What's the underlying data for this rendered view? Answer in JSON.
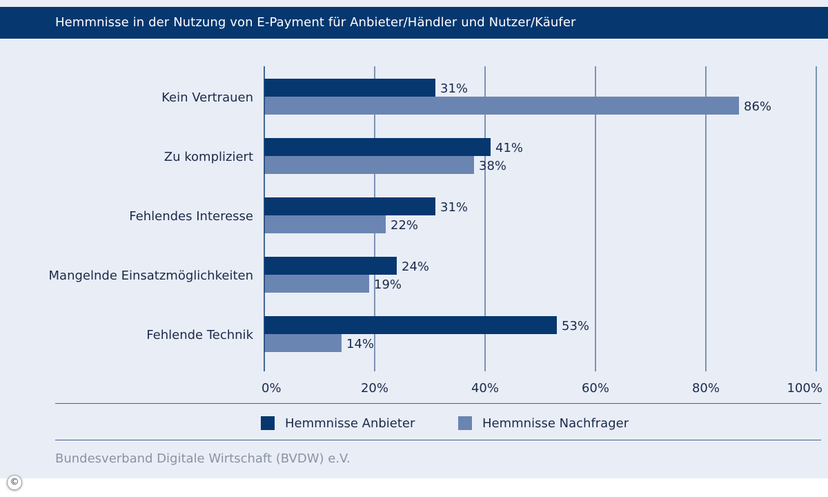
{
  "colors": {
    "header_bg": "#06376f",
    "panel_bg": "#e9edf6",
    "anbieter": "#06376f",
    "nachfrager": "#6b85b2",
    "text": "#1a2a4a",
    "source_text": "#8a93a3"
  },
  "footer": {
    "source": "Bundesverband Digitale Wirtschaft (BVDW) e.V.",
    "copyright_icon": "copyright-icon"
  },
  "chart_data": {
    "type": "bar",
    "orientation": "horizontal",
    "title": "Hemmnisse in der Nutzung von E-Payment für Anbieter/Händler und Nutzer/Käufer",
    "categories": [
      "Kein Vertrauen",
      "Zu kompliziert",
      "Fehlendes Interesse",
      "Mangelnde Einsatzmöglichkeiten",
      "Fehlende Technik"
    ],
    "series": [
      {
        "name": "Hemmnisse Anbieter",
        "values": [
          31,
          41,
          31,
          24,
          53
        ],
        "labels": [
          "31%",
          "41%",
          "31%",
          "24%",
          "53%"
        ]
      },
      {
        "name": "Hemmnisse Nachfrager",
        "values": [
          86,
          38,
          22,
          19,
          14
        ],
        "labels": [
          "86%",
          "38%",
          "22%",
          "19%",
          "14%"
        ]
      }
    ],
    "xlim": [
      0,
      100
    ],
    "ticks": [
      0,
      20,
      40,
      60,
      80,
      100
    ],
    "tick_labels": [
      "0%",
      "20%",
      "40%",
      "60%",
      "80%",
      "100%"
    ],
    "grid": true,
    "legend_position": "bottom"
  }
}
